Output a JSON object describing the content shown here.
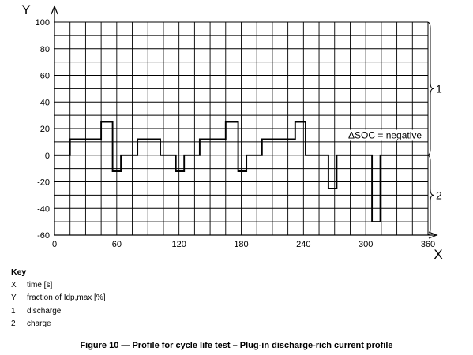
{
  "chart_data": {
    "type": "line",
    "step": true,
    "xlabel": "X",
    "ylabel": "Y",
    "xlim": [
      0,
      360
    ],
    "ylim": [
      -60,
      100
    ],
    "x_ticks": [
      0,
      60,
      120,
      180,
      240,
      300,
      360
    ],
    "y_ticks": [
      100,
      80,
      60,
      40,
      20,
      0,
      -20,
      -40,
      -60
    ],
    "grid": true,
    "series": [
      {
        "x": [
          0,
          15,
          15,
          45,
          45,
          56,
          56,
          64,
          64,
          80,
          80,
          102,
          102,
          110,
          110,
          117,
          117,
          125,
          125,
          140,
          140,
          165,
          165,
          177,
          177,
          185,
          185,
          200,
          200,
          232,
          232,
          242,
          242,
          264,
          264,
          272,
          272,
          306,
          306,
          314,
          314,
          360
        ],
        "y": [
          0,
          0,
          12,
          12,
          25,
          25,
          -12,
          -12,
          0,
          0,
          12,
          12,
          0,
          0,
          0,
          0,
          -12,
          -12,
          0,
          0,
          12,
          12,
          25,
          25,
          -12,
          -12,
          0,
          0,
          12,
          12,
          25,
          25,
          0,
          0,
          -25,
          -25,
          0,
          0,
          -50,
          -50,
          0,
          0
        ]
      }
    ],
    "annotations": [
      {
        "text": "ΔSOC = negative",
        "x": 295,
        "y": 12
      }
    ],
    "region_labels": [
      "1",
      "2"
    ]
  },
  "key": {
    "title": "Key",
    "items": [
      {
        "symbol": "X",
        "text": "time [s]"
      },
      {
        "symbol": "Y",
        "text": "fraction of Idp,max [%]"
      },
      {
        "symbol": "1",
        "text": "discharge"
      },
      {
        "symbol": "2",
        "text": "charge"
      }
    ]
  },
  "caption": "Figure 10 — Profile for cycle life test – Plug-in discharge-rich current profile"
}
